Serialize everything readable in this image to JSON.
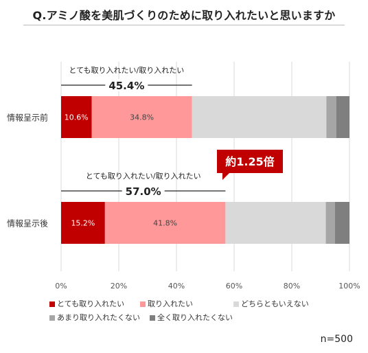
{
  "title": "Q.アミノ酸を美肌づくりのために取り入れたいと思いますか",
  "n_label": "n=500",
  "colors": {
    "very": "#c00000",
    "somewhat": "#ff9999",
    "neutral": "#d9d9d9",
    "not_much": "#a6a6a6",
    "not_at_all": "#7f7f7f",
    "badge": "#c00000"
  },
  "chart_data": {
    "type": "bar",
    "orientation": "horizontal",
    "stacked": true,
    "categories": [
      "情報呈示前",
      "情報呈示後"
    ],
    "series": [
      {
        "name": "とても取り入れたい",
        "values": [
          10.6,
          15.2
        ],
        "color": "#c00000"
      },
      {
        "name": "取り入れたい",
        "values": [
          34.8,
          41.8
        ],
        "color": "#ff9999"
      },
      {
        "name": "どちらともいえない",
        "values": [
          46.6,
          34.8
        ],
        "color": "#d9d9d9"
      },
      {
        "name": "あまり取り入れたくない",
        "values": [
          3.4,
          3.2
        ],
        "color": "#a6a6a6"
      },
      {
        "name": "全く取り入れたくない",
        "values": [
          4.6,
          5.0
        ],
        "color": "#7f7f7f"
      }
    ],
    "data_labels": [
      [
        "10.6%",
        "34.8%"
      ],
      [
        "15.2%",
        "41.8%"
      ]
    ],
    "x_ticks": [
      "0%",
      "20%",
      "40%",
      "60%",
      "80%",
      "100%"
    ],
    "xlim": [
      0,
      100
    ],
    "grid": true,
    "legend_position": "bottom",
    "annotations": [
      {
        "label": "とても取り入れたい/取り入れたい",
        "value_text": "45.4%",
        "value": 45.4,
        "category": "情報呈示前"
      },
      {
        "label": "とても取り入れたい/取り入れたい",
        "value_text": "57.0%",
        "value": 57.0,
        "category": "情報呈示後"
      }
    ],
    "badge": "約1.25倍"
  }
}
